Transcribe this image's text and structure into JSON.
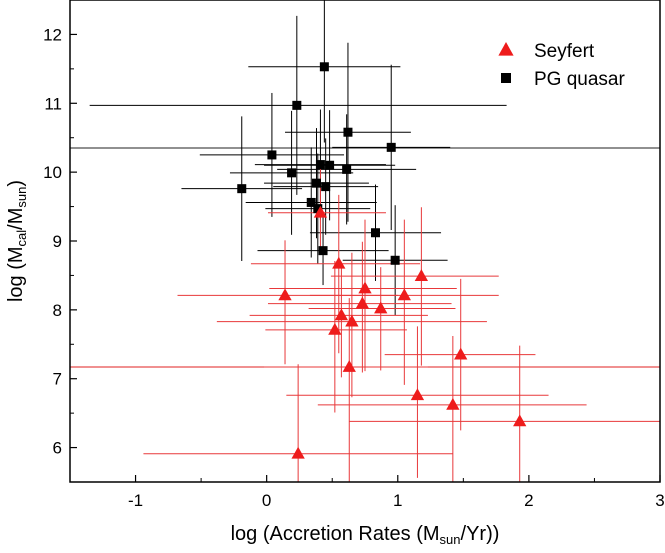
{
  "chart_data": {
    "type": "scatter",
    "title": "",
    "xlabel": {
      "base": "log (Accretion Rates (M",
      "sub": "sun",
      "tail": "/Yr))"
    },
    "ylabel": {
      "pre": "log (M",
      "sub1": "cal",
      "mid": "/M",
      "sub2": "sun",
      "tail": ")"
    },
    "xlim": [
      -1.5,
      3.0
    ],
    "ylim": [
      5.5,
      12.5
    ],
    "x_ticks": [
      -1,
      0,
      1,
      2,
      3
    ],
    "x_tick_labels": [
      "-1",
      "0",
      "1",
      "2",
      "3"
    ],
    "y_ticks": [
      6,
      7,
      8,
      9,
      10,
      11,
      12
    ],
    "y_tick_labels": [
      "6",
      "7",
      "8",
      "9",
      "10",
      "11",
      "12"
    ],
    "grid": false,
    "legend_position": "top-right",
    "reference_lines": [
      {
        "y": 10.35,
        "color": "#222222"
      },
      {
        "y": 7.17,
        "color": "#e02020"
      }
    ],
    "series": [
      {
        "name": "Seyfert",
        "marker": "triangle",
        "color": "#ee1c1c",
        "points": [
          {
            "x": 0.14,
            "y": 8.21,
            "xerr": [
              0.82,
              0.86
            ],
            "yerr": [
              1.0,
              0.8
            ]
          },
          {
            "x": 0.24,
            "y": 5.91,
            "xerr": [
              1.18,
              1.18
            ],
            "yerr": [
              0.5,
              1.3
            ]
          },
          {
            "x": 0.41,
            "y": 9.41,
            "xerr": [
              0.4,
              0.5
            ],
            "yerr": [
              0.6,
              0.7
            ]
          },
          {
            "x": 0.52,
            "y": 7.71,
            "xerr": [
              0.53,
              0.55
            ],
            "yerr": [
              1.2,
              1.0
            ]
          },
          {
            "x": 0.55,
            "y": 8.67,
            "xerr": [
              0.67,
              0.62
            ],
            "yerr": [
              1.3,
              1.0
            ]
          },
          {
            "x": 0.57,
            "y": 7.92,
            "xerr": [
              0.7,
              0.66
            ],
            "yerr": [
              0.9,
              0.7
            ]
          },
          {
            "x": 0.63,
            "y": 7.17,
            "xerr": [
              0.65,
              0.6
            ],
            "yerr": [
              1.9,
              1.0
            ]
          },
          {
            "x": 0.65,
            "y": 7.83,
            "xerr": [
              1.03,
              1.03
            ],
            "yerr": [
              1.1,
              1.0
            ]
          },
          {
            "x": 0.73,
            "y": 8.09,
            "xerr": [
              0.72,
              0.68
            ],
            "yerr": [
              1.0,
              0.9
            ]
          },
          {
            "x": 0.75,
            "y": 8.31,
            "xerr": [
              0.73,
              0.7
            ],
            "yerr": [
              1.2,
              1.0
            ]
          },
          {
            "x": 0.87,
            "y": 8.02,
            "xerr": [
              0.55,
              0.57
            ],
            "yerr": [
              0.9,
              0.6
            ]
          },
          {
            "x": 1.05,
            "y": 8.21,
            "xerr": [
              0.72,
              0.72
            ],
            "yerr": [
              1.3,
              1.1
            ]
          },
          {
            "x": 1.15,
            "y": 6.76,
            "xerr": [
              1.0,
              1.0
            ],
            "yerr": [
              1.2,
              1.0
            ]
          },
          {
            "x": 1.18,
            "y": 8.49,
            "xerr": [
              0.69,
              0.59
            ],
            "yerr": [
              1.3,
              1.0
            ]
          },
          {
            "x": 1.42,
            "y": 6.62,
            "xerr": [
              1.03,
              1.02
            ],
            "yerr": [
              1.2,
              1.0
            ]
          },
          {
            "x": 1.48,
            "y": 7.35,
            "xerr": [
              0.58,
              0.57
            ],
            "yerr": [
              1.1,
              1.1
            ]
          },
          {
            "x": 1.93,
            "y": 6.38,
            "xerr": [
              1.3,
              1.07
            ],
            "yerr": [
              0.9,
              1.1
            ]
          }
        ]
      },
      {
        "name": "PG quasar",
        "marker": "square",
        "color": "#000000",
        "points": [
          {
            "x": -0.19,
            "y": 9.76,
            "xerr": [
              0.46,
              0.46
            ],
            "yerr": [
              1.05,
              1.05
            ]
          },
          {
            "x": 0.04,
            "y": 10.25,
            "xerr": [
              0.55,
              0.55
            ],
            "yerr": [
              0.9,
              0.9
            ]
          },
          {
            "x": 0.19,
            "y": 9.99,
            "xerr": [
              0.47,
              0.47
            ],
            "yerr": [
              0.9,
              0.9
            ]
          },
          {
            "x": 0.23,
            "y": 10.97,
            "xerr": [
              1.58,
              1.6
            ],
            "yerr": [
              1.3,
              1.3
            ]
          },
          {
            "x": 0.34,
            "y": 9.56,
            "xerr": [
              0.5,
              0.5
            ],
            "yerr": [
              0.8,
              0.8
            ]
          },
          {
            "x": 0.38,
            "y": 9.84,
            "xerr": [
              0.4,
              0.4
            ],
            "yerr": [
              0.8,
              0.8
            ]
          },
          {
            "x": 0.39,
            "y": 9.47,
            "xerr": [
              0.4,
              0.4
            ],
            "yerr": [
              0.8,
              0.8
            ]
          },
          {
            "x": 0.41,
            "y": 10.11,
            "xerr": [
              0.5,
              0.5
            ],
            "yerr": [
              0.8,
              0.8
            ]
          },
          {
            "x": 0.43,
            "y": 8.86,
            "xerr": [
              0.5,
              0.5
            ],
            "yerr": [
              0.5,
              0.5
            ]
          },
          {
            "x": 0.44,
            "y": 11.53,
            "xerr": [
              0.58,
              0.58
            ],
            "yerr": [
              1.1,
              1.1
            ]
          },
          {
            "x": 0.45,
            "y": 9.79,
            "xerr": [
              0.4,
              0.4
            ],
            "yerr": [
              0.7,
              0.7
            ]
          },
          {
            "x": 0.48,
            "y": 10.1,
            "xerr": [
              0.5,
              0.5
            ],
            "yerr": [
              0.8,
              0.8
            ]
          },
          {
            "x": 0.61,
            "y": 10.04,
            "xerr": [
              0.53,
              0.53
            ],
            "yerr": [
              0.8,
              0.8
            ]
          },
          {
            "x": 0.62,
            "y": 10.58,
            "xerr": [
              0.48,
              0.48
            ],
            "yerr": [
              1.3,
              1.3
            ]
          },
          {
            "x": 0.83,
            "y": 9.12,
            "xerr": [
              0.5,
              0.5
            ],
            "yerr": [
              0.7,
              0.7
            ]
          },
          {
            "x": 0.95,
            "y": 10.36,
            "xerr": [
              0.45,
              0.45
            ],
            "yerr": [
              1.2,
              1.2
            ]
          },
          {
            "x": 0.98,
            "y": 8.72,
            "xerr": [
              0.4,
              0.4
            ],
            "yerr": [
              0.8,
              0.8
            ]
          }
        ]
      }
    ]
  }
}
